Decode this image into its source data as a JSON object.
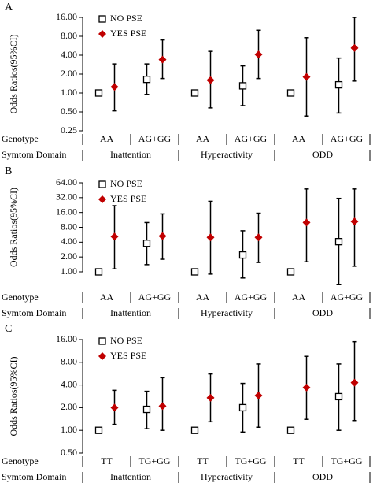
{
  "chart_data": [
    {
      "type": "errorbar",
      "panel_label": "A",
      "ylabel": "Odds Ratios(95%CI)",
      "log_scale": true,
      "legend": "upper left",
      "ylim": [
        0.25,
        16
      ],
      "yticks": [
        {
          "value": 0.25,
          "label": "0.25"
        },
        {
          "value": 0.5,
          "label": "0.50"
        },
        {
          "value": 1,
          "label": "1.00"
        },
        {
          "value": 2,
          "label": "2.00"
        },
        {
          "value": 4,
          "label": "4.00"
        },
        {
          "value": 8,
          "label": "8.00"
        },
        {
          "value": 16,
          "label": "16.00"
        }
      ],
      "row_labels": [
        "Genotype",
        "Symtom Domain"
      ],
      "categories": [
        "AA",
        "AG+GG",
        "AA",
        "AG+GG",
        "AA",
        "AG+GG"
      ],
      "groups": [
        "Inattention",
        "Hyperactivity",
        "ODD"
      ],
      "series": [
        {
          "name": "NO PSE",
          "color": "#000000",
          "marker": "square",
          "values": [
            1,
            1.65,
            1,
            1.3,
            1,
            1.35
          ],
          "lower": [
            null,
            0.95,
            null,
            0.63,
            null,
            0.48
          ],
          "upper": [
            null,
            2.9,
            null,
            2.7,
            null,
            3.6
          ]
        },
        {
          "name": "YES PSE",
          "color": "#c00000",
          "marker": "diamond",
          "values": [
            1.25,
            3.4,
            1.6,
            4.1,
            1.8,
            5.2
          ],
          "lower": [
            0.52,
            1.7,
            0.58,
            1.7,
            0.43,
            1.55
          ],
          "upper": [
            2.9,
            7,
            4.6,
            10,
            7.6,
            16
          ]
        }
      ]
    },
    {
      "type": "errorbar",
      "panel_label": "B",
      "ylabel": "Odds Ratios(95%CI)",
      "log_scale": true,
      "legend": "upper left",
      "ylim": [
        1,
        64
      ],
      "yticks": [
        {
          "value": 1,
          "label": "1.00"
        },
        {
          "value": 2,
          "label": "2.00"
        },
        {
          "value": 4,
          "label": "4.00"
        },
        {
          "value": 8,
          "label": "8.00"
        },
        {
          "value": 16,
          "label": "16.00"
        },
        {
          "value": 32,
          "label": "32.00"
        },
        {
          "value": 64,
          "label": "64.00"
        }
      ],
      "row_labels": [
        "Genotype",
        "Symtom Domain"
      ],
      "categories": [
        "AA",
        "AG+GG",
        "AA",
        "AG+GG",
        "AA",
        "AG+GG"
      ],
      "groups": [
        "Inattention",
        "Hyperactivity",
        "ODD"
      ],
      "series": [
        {
          "name": "NO PSE",
          "color": "#000000",
          "marker": "square",
          "values": [
            1,
            3.8,
            1,
            2.2,
            1,
            4.1
          ],
          "lower": [
            null,
            1.4,
            null,
            0.75,
            null,
            0.55
          ],
          "upper": [
            null,
            10,
            null,
            6.8,
            null,
            31
          ]
        },
        {
          "name": "YES PSE",
          "color": "#c00000",
          "marker": "diamond",
          "values": [
            5.2,
            5.3,
            5,
            5,
            10,
            10.5
          ],
          "lower": [
            1.15,
            1.8,
            0.9,
            1.55,
            1.6,
            1.3
          ],
          "upper": [
            22,
            15,
            27,
            15.5,
            48,
            48
          ]
        }
      ]
    },
    {
      "type": "errorbar",
      "panel_label": "C",
      "ylabel": "Odds Ratios(95%CI)",
      "log_scale": true,
      "legend": "upper left",
      "ylim": [
        0.5,
        16
      ],
      "yticks": [
        {
          "value": 0.5,
          "label": "0.50"
        },
        {
          "value": 1,
          "label": "1.00"
        },
        {
          "value": 2,
          "label": "2.00"
        },
        {
          "value": 4,
          "label": "4.00"
        },
        {
          "value": 8,
          "label": "8.00"
        },
        {
          "value": 16,
          "label": "16.00"
        }
      ],
      "row_labels": [
        "Genotype",
        "Symtom Domain"
      ],
      "categories": [
        "TT",
        "TG+GG",
        "TT",
        "TG+GG",
        "TT",
        "TG+GG"
      ],
      "groups": [
        "Inattention",
        "Hyperactivity",
        "ODD"
      ],
      "series": [
        {
          "name": "NO PSE",
          "color": "#000000",
          "marker": "square",
          "values": [
            1,
            1.9,
            1,
            2,
            1,
            2.8
          ],
          "lower": [
            null,
            1.05,
            null,
            0.95,
            null,
            1
          ],
          "upper": [
            null,
            3.3,
            null,
            4.2,
            null,
            7.6
          ]
        },
        {
          "name": "YES PSE",
          "color": "#c00000",
          "marker": "diamond",
          "values": [
            2,
            2.1,
            2.7,
            2.9,
            3.7,
            4.3
          ],
          "lower": [
            1.2,
            1,
            1.3,
            1.1,
            1.4,
            1.35
          ],
          "upper": [
            3.4,
            5,
            5.6,
            7.6,
            9.6,
            15
          ]
        }
      ]
    }
  ]
}
